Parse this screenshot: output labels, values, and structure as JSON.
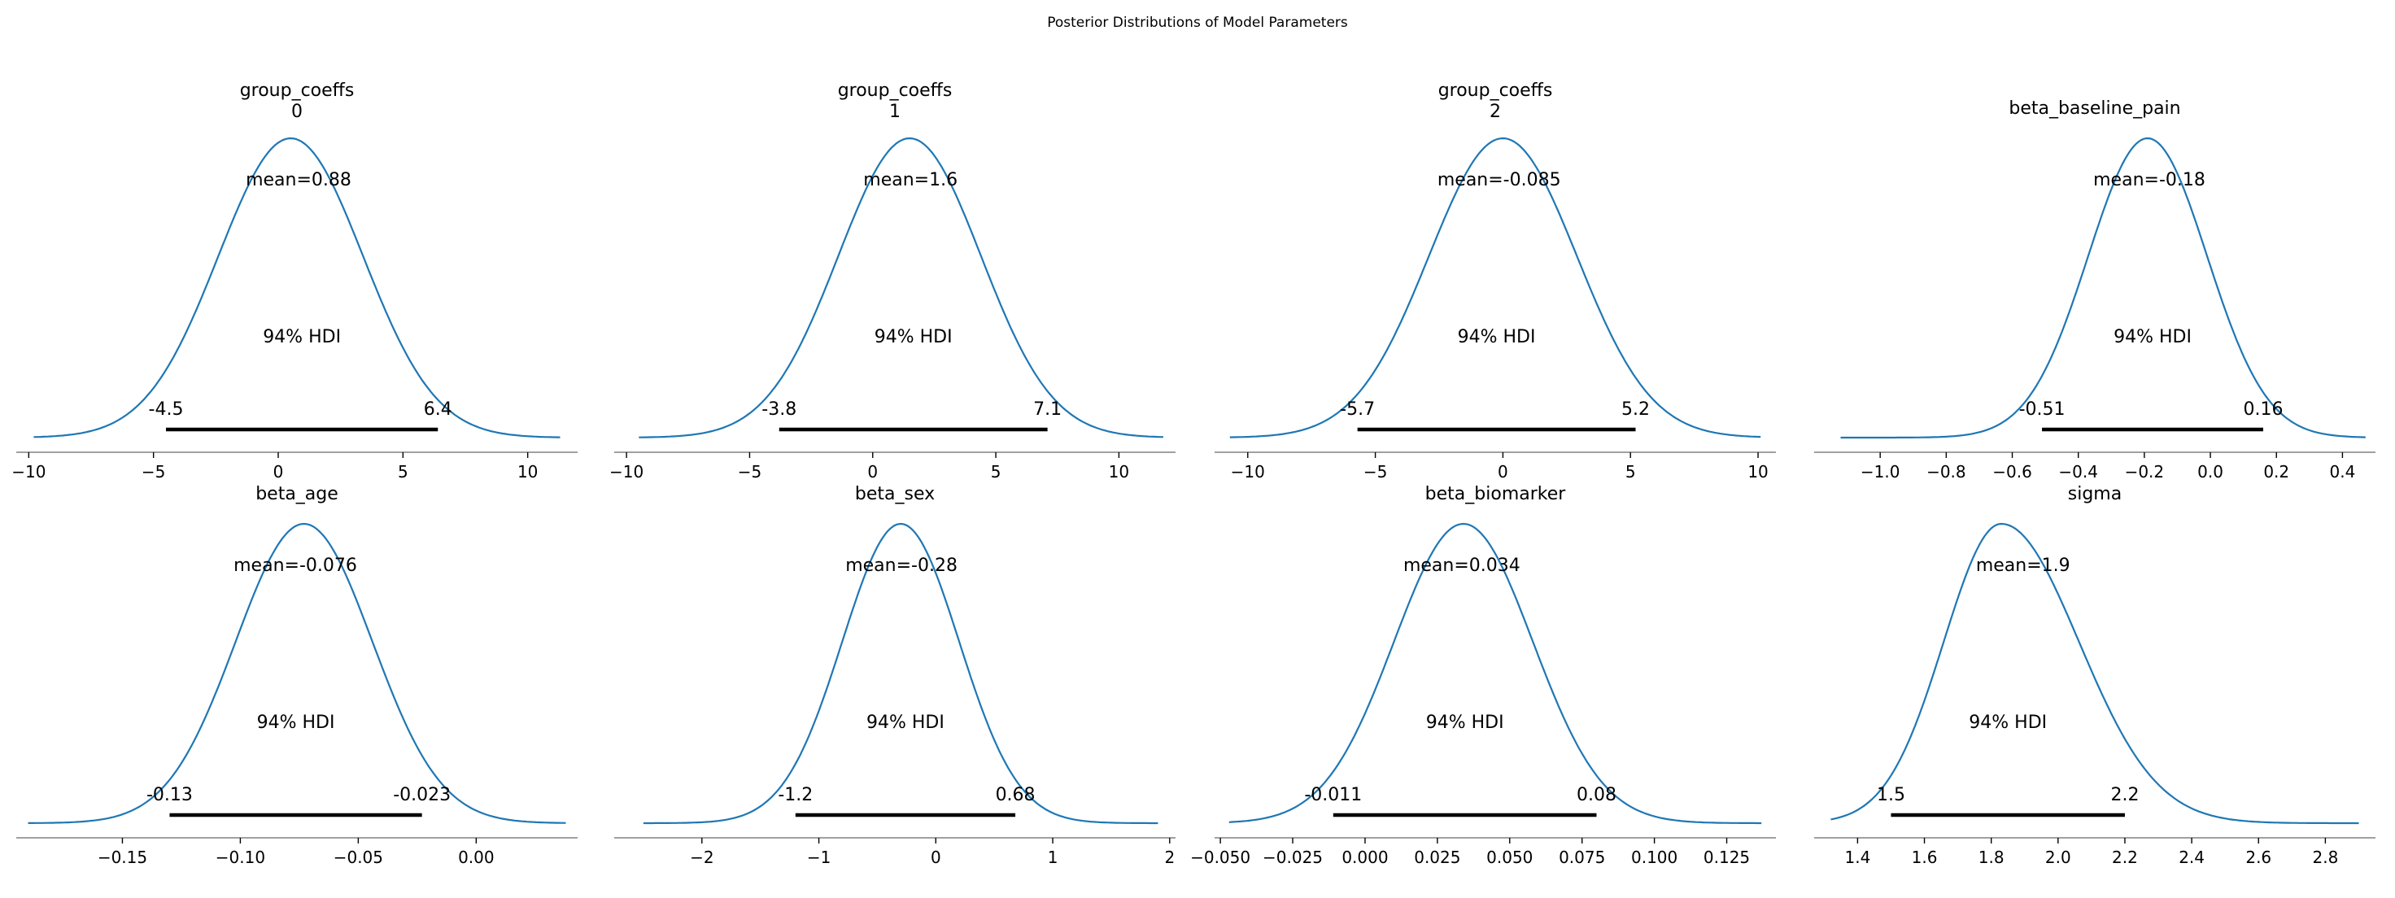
{
  "figure": {
    "suptitle": "Posterior Distributions of Model Parameters"
  },
  "colors": {
    "curve": "#1f77b4",
    "hdi": "#000000",
    "axis": "#808080"
  },
  "chart_data": [
    {
      "type": "area",
      "title": [
        "group_coeffs",
        "0"
      ],
      "mean": 0.88,
      "mean_label": "mean=0.88",
      "hdi_prob_label": "94% HDI",
      "hdi": [
        -4.5,
        6.4
      ],
      "hdi_labels": [
        "-4.5",
        "6.4"
      ],
      "xlim": [
        -10.5,
        12
      ],
      "data_range": [
        -9.8,
        11.3
      ],
      "mode": 0.5,
      "sd": 2.9,
      "xticks": [
        -10,
        -5,
        0,
        5,
        10
      ],
      "xtick_labels": [
        "−10",
        "−5",
        "0",
        "5",
        "10"
      ]
    },
    {
      "type": "area",
      "title": [
        "group_coeffs",
        "1"
      ],
      "mean": 1.6,
      "mean_label": "mean=1.6",
      "hdi_prob_label": "94% HDI",
      "hdi": [
        -3.8,
        7.1
      ],
      "hdi_labels": [
        "-3.8",
        "7.1"
      ],
      "xlim": [
        -10.5,
        12.3
      ],
      "data_range": [
        -9.5,
        11.8
      ],
      "mode": 1.5,
      "sd": 2.9,
      "xticks": [
        -10,
        -5,
        0,
        5,
        10
      ],
      "xtick_labels": [
        "−10",
        "−5",
        "0",
        "5",
        "10"
      ]
    },
    {
      "type": "area",
      "title": [
        "group_coeffs",
        "2"
      ],
      "mean": -0.085,
      "mean_label": "mean=-0.085",
      "hdi_prob_label": "94% HDI",
      "hdi": [
        -5.7,
        5.2
      ],
      "hdi_labels": [
        "-5.7",
        "5.2"
      ],
      "xlim": [
        -11.3,
        10.7
      ],
      "data_range": [
        -10.7,
        10.1
      ],
      "mode": 0,
      "sd": 2.9,
      "xticks": [
        -10,
        -5,
        0,
        5,
        10
      ],
      "xtick_labels": [
        "−10",
        "−5",
        "0",
        "5",
        "10"
      ]
    },
    {
      "type": "area",
      "title": [
        "beta_baseline_pain"
      ],
      "mean": -0.18,
      "mean_label": "mean=-0.18",
      "hdi_prob_label": "94% HDI",
      "hdi": [
        -0.51,
        0.16
      ],
      "hdi_labels": [
        "-0.51",
        "0.16"
      ],
      "xlim": [
        -1.2,
        0.5
      ],
      "data_range": [
        -1.12,
        0.47
      ],
      "mode": -0.19,
      "sd": 0.18,
      "xticks": [
        -1.0,
        -0.8,
        -0.6,
        -0.4,
        -0.2,
        0.0,
        0.2,
        0.4
      ],
      "xtick_labels": [
        "−1.0",
        "−0.8",
        "−0.6",
        "−0.4",
        "−0.2",
        "0.0",
        "0.2",
        "0.4"
      ]
    },
    {
      "type": "area",
      "title": [
        "beta_age"
      ],
      "mean": -0.076,
      "mean_label": "mean=-0.076",
      "hdi_prob_label": "94% HDI",
      "hdi": [
        -0.13,
        -0.023
      ],
      "hdi_labels": [
        "-0.13",
        "-0.023"
      ],
      "xlim": [
        -0.195,
        0.043
      ],
      "data_range": [
        -0.19,
        0.038
      ],
      "mode": -0.073,
      "sd": 0.029,
      "xticks": [
        -0.15,
        -0.1,
        -0.05,
        0.0
      ],
      "xtick_labels": [
        "−0.15",
        "−0.10",
        "−0.05",
        "0.00"
      ]
    },
    {
      "type": "area",
      "title": [
        "beta_sex"
      ],
      "mean": -0.28,
      "mean_label": "mean=-0.28",
      "hdi_prob_label": "94% HDI",
      "hdi": [
        -1.2,
        0.68
      ],
      "hdi_labels": [
        "-1.2",
        "0.68"
      ],
      "xlim": [
        -2.75,
        2.05
      ],
      "data_range": [
        -2.5,
        1.9
      ],
      "mode": -0.3,
      "sd": 0.5,
      "xticks": [
        -2,
        -1,
        0,
        1,
        2
      ],
      "xtick_labels": [
        "−2",
        "−1",
        "0",
        "1",
        "2"
      ]
    },
    {
      "type": "area",
      "title": [
        "beta_biomarker"
      ],
      "mean": 0.034,
      "mean_label": "mean=0.034",
      "hdi_prob_label": "94% HDI",
      "hdi": [
        -0.011,
        0.08
      ],
      "hdi_labels": [
        "-0.011",
        "0.08"
      ],
      "xlim": [
        -0.052,
        0.142
      ],
      "data_range": [
        -0.047,
        0.137
      ],
      "mode": 0.034,
      "sd": 0.024,
      "xticks": [
        -0.05,
        -0.025,
        0.0,
        0.025,
        0.05,
        0.075,
        0.1,
        0.125
      ],
      "xtick_labels": [
        "−0.050",
        "−0.025",
        "0.000",
        "0.025",
        "0.050",
        "0.075",
        "0.100",
        "0.125"
      ]
    },
    {
      "type": "area",
      "title": [
        "sigma"
      ],
      "mean": 1.9,
      "mean_label": "mean=1.9",
      "hdi_prob_label": "94% HDI",
      "hdi": [
        1.5,
        2.2
      ],
      "hdi_labels": [
        "1.5",
        "2.2"
      ],
      "xlim": [
        1.27,
        2.95
      ],
      "data_range": [
        1.32,
        2.9
      ],
      "mode": 1.83,
      "sd": 0.2,
      "skew": 1.35,
      "xticks": [
        1.4,
        1.6,
        1.8,
        2.0,
        2.2,
        2.4,
        2.6,
        2.8
      ],
      "xtick_labels": [
        "1.4",
        "1.6",
        "1.8",
        "2.0",
        "2.2",
        "2.4",
        "2.6",
        "2.8"
      ]
    }
  ]
}
